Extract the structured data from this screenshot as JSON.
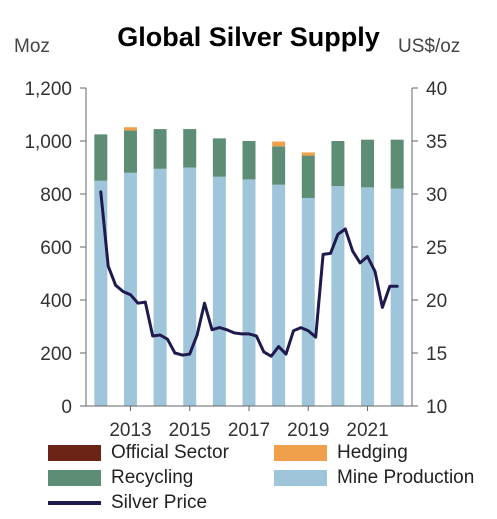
{
  "chart_data": {
    "type": "bar",
    "title": "Global Silver Supply",
    "ylabel_left": "Moz",
    "ylabel_right": "US$/oz",
    "ylim_left": [
      0,
      1200
    ],
    "ylim_right": [
      10,
      40
    ],
    "yticks_left": [
      "0",
      "200",
      "400",
      "600",
      "800",
      "1,000",
      "1,200"
    ],
    "yticks_right": [
      "10",
      "15",
      "20",
      "25",
      "30",
      "35",
      "40"
    ],
    "xticks": [
      "2013",
      "2015",
      "2017",
      "2019",
      "2021"
    ],
    "categories": [
      "2012",
      "2013",
      "2014",
      "2015",
      "2016",
      "2017",
      "2018",
      "2019",
      "2020",
      "2021",
      "2022"
    ],
    "stacked_series": [
      {
        "name": "Official Sector",
        "color": "#6b2315",
        "values": [
          0,
          0,
          0,
          0,
          0,
          0,
          0,
          0,
          0,
          0,
          0
        ]
      },
      {
        "name": "Mine Production",
        "color": "#9fc5db",
        "values": [
          850,
          880,
          895,
          900,
          865,
          855,
          835,
          785,
          830,
          825,
          820
        ]
      },
      {
        "name": "Recycling",
        "color": "#5e8d75",
        "values": [
          175,
          160,
          150,
          145,
          145,
          145,
          145,
          160,
          170,
          180,
          185
        ]
      },
      {
        "name": "Hedging",
        "color": "#f0a04b",
        "values": [
          0,
          12,
          0,
          0,
          0,
          0,
          18,
          12,
          0,
          0,
          0
        ]
      }
    ],
    "line_series": {
      "name": "Silver Price",
      "color": "#1f1a4e",
      "x": [
        2012.0,
        2012.25,
        2012.5,
        2012.75,
        2013.0,
        2013.25,
        2013.5,
        2013.75,
        2014.0,
        2014.25,
        2014.5,
        2014.75,
        2015.0,
        2015.25,
        2015.5,
        2015.75,
        2016.0,
        2016.25,
        2016.5,
        2016.75,
        2017.0,
        2017.25,
        2017.5,
        2017.75,
        2018.0,
        2018.25,
        2018.5,
        2018.75,
        2019.0,
        2019.25,
        2019.5,
        2019.75,
        2020.0,
        2020.25,
        2020.5,
        2020.75,
        2021.0,
        2021.25,
        2021.5,
        2021.75,
        2022.0
      ],
      "values": [
        30.2,
        23.2,
        21.4,
        20.8,
        20.5,
        19.7,
        19.8,
        16.6,
        16.7,
        16.3,
        15.0,
        14.8,
        14.9,
        16.7,
        19.7,
        17.2,
        17.4,
        17.2,
        16.9,
        16.8,
        16.8,
        16.6,
        15.1,
        14.7,
        15.6,
        14.9,
        17.1,
        17.4,
        17.1,
        16.5,
        24.3,
        24.4,
        26.2,
        26.7,
        24.6,
        23.5,
        24.1,
        22.7,
        19.3,
        21.3,
        21.3
      ]
    },
    "legend": {
      "position": "bottom",
      "entries": [
        "Official Sector",
        "Hedging",
        "Recycling",
        "Mine Production",
        "Silver Price"
      ]
    },
    "grid": false
  }
}
